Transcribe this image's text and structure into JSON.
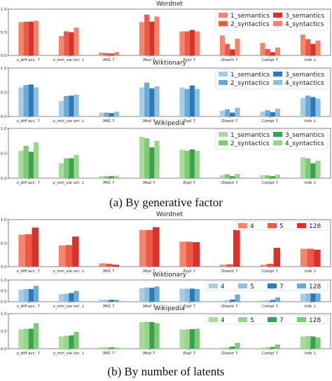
{
  "captions": {
    "a": "(a) By generative factor",
    "b": "(b) By number of latents"
  },
  "chart_data": [
    {
      "type": "bar",
      "title": "Wordnet",
      "ylim": [
        0,
        1
      ],
      "yticks": [
        "0.0",
        "0.5",
        "1.0"
      ],
      "grid": false,
      "legend": "top-right",
      "categories": [
        "z_diff acc. ↑",
        "z_min_var err. ↓",
        "MIG ↑",
        "Mod ↑",
        "Expl ↑",
        "Disent ↑",
        "Compl ↑",
        "Info ↓"
      ],
      "series": [
        {
          "name": "1_semantics",
          "color": "#f4866d",
          "values": [
            0.72,
            0.42,
            0.06,
            0.72,
            0.52,
            0.43,
            0.27,
            0.45
          ]
        },
        {
          "name": "2_syntactics",
          "color": "#ea5a46",
          "values": [
            0.73,
            0.52,
            0.05,
            0.88,
            0.52,
            0.25,
            0.14,
            0.35
          ]
        },
        {
          "name": "3_semantics",
          "color": "#d9322a",
          "values": [
            0.73,
            0.5,
            0.04,
            0.73,
            0.55,
            0.13,
            0.07,
            0.25
          ]
        },
        {
          "name": "4_syntactics",
          "color": "#f3836b",
          "values": [
            0.75,
            0.6,
            0.07,
            0.84,
            0.52,
            0.36,
            0.17,
            0.32
          ]
        }
      ]
    },
    {
      "type": "bar",
      "title": "Wiktionary",
      "ylim": [
        0,
        1
      ],
      "yticks": [
        "0.0",
        "0.5",
        "1.0"
      ],
      "grid": false,
      "legend": "top-right",
      "categories": [
        "z_diff acc. ↑",
        "z_min_var err. ↓",
        "MIG ↑",
        "Mod ↑",
        "Expl ↑",
        "Disent ↑",
        "Compl ↑",
        "Info ↓"
      ],
      "series": [
        {
          "name": "1_semantics",
          "color": "#a7cde7",
          "values": [
            0.6,
            0.32,
            0.08,
            0.6,
            0.6,
            0.12,
            0.1,
            0.38
          ]
        },
        {
          "name": "2_syntactics",
          "color": "#6aaad5",
          "values": [
            0.65,
            0.42,
            0.08,
            0.7,
            0.57,
            0.15,
            0.13,
            0.43
          ]
        },
        {
          "name": "3_semantics",
          "color": "#2e7ab9",
          "values": [
            0.66,
            0.43,
            0.07,
            0.58,
            0.64,
            0.08,
            0.09,
            0.4
          ]
        },
        {
          "name": "4_syntactics",
          "color": "#8ebfe0",
          "values": [
            0.6,
            0.45,
            0.1,
            0.62,
            0.57,
            0.18,
            0.16,
            0.37
          ]
        }
      ]
    },
    {
      "type": "bar",
      "title": "Wikipedia",
      "ylim": [
        0,
        1
      ],
      "yticks": [
        "0.0",
        "0.5",
        "1.0"
      ],
      "grid": false,
      "legend": "top-right",
      "categories": [
        "z_diff acc. ↑",
        "z_min_var err. ↓",
        "MIG ↑",
        "Mod ↑",
        "Expl ↑",
        "Disent ↑",
        "Compl ↑",
        "Info ↓"
      ],
      "series": [
        {
          "name": "1_semantics",
          "color": "#a7dc9c",
          "values": [
            0.55,
            0.3,
            0.04,
            0.83,
            0.57,
            0.06,
            0.06,
            0.42
          ]
        },
        {
          "name": "2_syntactics",
          "color": "#7ccb74",
          "values": [
            0.65,
            0.4,
            0.04,
            0.8,
            0.55,
            0.08,
            0.06,
            0.4
          ]
        },
        {
          "name": "3_semantics",
          "color": "#3aa24d",
          "values": [
            0.53,
            0.4,
            0.04,
            0.62,
            0.58,
            0.04,
            0.04,
            0.3
          ]
        },
        {
          "name": "4_syntactics",
          "color": "#98d58c",
          "values": [
            0.72,
            0.47,
            0.05,
            0.75,
            0.55,
            0.09,
            0.07,
            0.35
          ]
        }
      ]
    },
    {
      "type": "bar",
      "title": "Wordnet",
      "ylim": [
        0,
        1
      ],
      "yticks": [
        "0.0",
        "0.5",
        "1.0"
      ],
      "grid": false,
      "legend": "top-right",
      "categories": [
        "z_diff acc. ↑",
        "z_min_var err. ↓",
        "MIG ↑",
        "Mod ↑",
        "Expl ↑",
        "Disent ↑",
        "Compl ↑",
        "Info ↓"
      ],
      "series": [
        {
          "name": "4",
          "color": "#f4866d",
          "values": [
            0.68,
            0.45,
            0.07,
            0.78,
            0.53,
            0.04,
            0.04,
            0.38
          ]
        },
        {
          "name": "5",
          "color": "#ea5a46",
          "values": [
            0.69,
            0.46,
            0.06,
            0.78,
            0.53,
            0.05,
            0.06,
            0.38
          ]
        },
        {
          "name": "128",
          "color": "#d9322a",
          "values": [
            0.83,
            0.64,
            0.04,
            0.84,
            0.52,
            0.78,
            0.4,
            0.36
          ]
        }
      ]
    },
    {
      "type": "bar",
      "title": "Wiktionary",
      "ylim": [
        0,
        1
      ],
      "yticks": [
        "0.0",
        "0.5",
        "1.0"
      ],
      "grid": false,
      "legend": "top-right",
      "categories": [
        "z_diff acc. ↑",
        "z_min_var err. ↓",
        "MIG ↑",
        "Mod ↑",
        "Expl ↑",
        "Disent ↑",
        "Compl ↑",
        "Info ↓"
      ],
      "series": [
        {
          "name": "4",
          "color": "#a7cde7",
          "values": [
            0.55,
            0.35,
            0.09,
            0.62,
            0.6,
            0.04,
            0.05,
            0.37
          ]
        },
        {
          "name": "5",
          "color": "#8ebfe0",
          "values": [
            0.58,
            0.37,
            0.09,
            0.65,
            0.6,
            0.06,
            0.06,
            0.38
          ]
        },
        {
          "name": "7",
          "color": "#2e7ab9",
          "values": [
            0.58,
            0.4,
            0.09,
            0.64,
            0.6,
            0.1,
            0.08,
            0.38
          ]
        },
        {
          "name": "128",
          "color": "#6aaad5",
          "values": [
            0.73,
            0.5,
            0.09,
            0.7,
            0.58,
            0.33,
            0.2,
            0.38
          ]
        }
      ]
    },
    {
      "type": "bar",
      "title": "Wikipedia",
      "ylim": [
        0,
        1
      ],
      "yticks": [
        "0.0",
        "0.5",
        "1.0"
      ],
      "grid": false,
      "legend": "top-right",
      "categories": [
        "z_diff acc. ↑",
        "z_min_var err. ↓",
        "MIG ↑",
        "Mod ↑",
        "Expl ↑",
        "Disent ↑",
        "Compl ↑",
        "Info ↓"
      ],
      "series": [
        {
          "name": "4",
          "color": "#a7dc9c",
          "values": [
            0.55,
            0.35,
            0.04,
            0.76,
            0.55,
            0.03,
            0.03,
            0.35
          ]
        },
        {
          "name": "5",
          "color": "#98d58c",
          "values": [
            0.57,
            0.37,
            0.04,
            0.77,
            0.55,
            0.04,
            0.04,
            0.36
          ]
        },
        {
          "name": "7",
          "color": "#3aa24d",
          "values": [
            0.57,
            0.38,
            0.04,
            0.76,
            0.56,
            0.06,
            0.05,
            0.35
          ]
        },
        {
          "name": "128",
          "color": "#7ccb74",
          "values": [
            0.73,
            0.48,
            0.03,
            0.73,
            0.57,
            0.17,
            0.12,
            0.32
          ]
        }
      ]
    }
  ]
}
